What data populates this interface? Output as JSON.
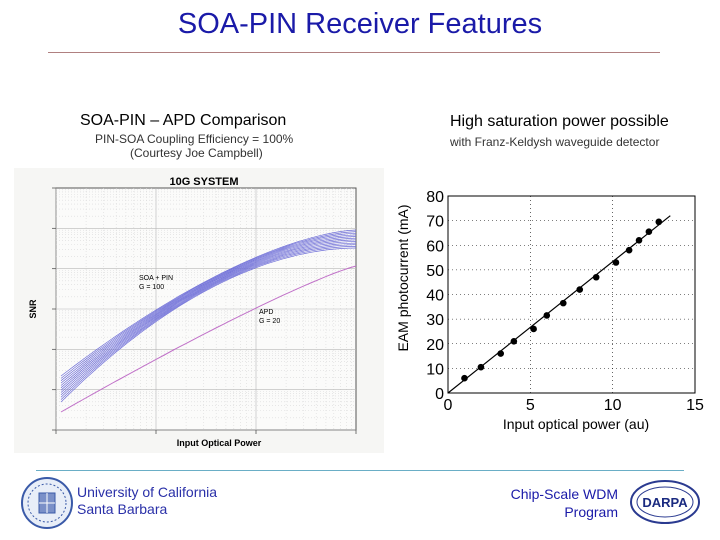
{
  "slide": {
    "title": "SOA-PIN Receiver Features"
  },
  "left_section": {
    "heading": "SOA-PIN – APD Comparison",
    "subtitle_line1": "PIN-SOA Coupling Efficiency = 100%",
    "subtitle_line2": "(Courtesy Joe Campbell)"
  },
  "right_section": {
    "heading": "High saturation power possible",
    "subtitle": "with Franz-Keldysh waveguide detector"
  },
  "footer": {
    "university_line1": "University of California",
    "university_line2": "Santa Barbara",
    "program_line1": "Chip-Scale WDM",
    "program_line2": "Program",
    "darpa_logo_text": "DARPA"
  },
  "chart_data": [
    {
      "type": "line",
      "title": "10G SYSTEM",
      "xlabel": "Input Optical Power",
      "ylabel": "SNR",
      "x_scale": "log",
      "y_scale": "log",
      "grid": true,
      "annotations": [
        {
          "lines": [
            "SOA + PIN",
            "G = 100"
          ]
        },
        {
          "lines": [
            "APD",
            "G = 20"
          ]
        }
      ],
      "series": [
        {
          "name": "SOA + PIN",
          "color": "#6f6fd8",
          "curve_count": 12
        },
        {
          "name": "APD",
          "color": "#c070c8",
          "curve_count": 1
        }
      ]
    },
    {
      "type": "scatter",
      "xlabel": "Input optical power (au)",
      "ylabel": "EAM photocurrent (mA)",
      "xlim": [
        0,
        15
      ],
      "ylim": [
        0,
        80
      ],
      "xticks": [
        "0",
        "5",
        "10",
        "15"
      ],
      "yticks": [
        "0",
        "10",
        "20",
        "30",
        "40",
        "50",
        "60",
        "70",
        "80"
      ],
      "grid": true,
      "fit_line": {
        "from": [
          0,
          0
        ],
        "to": [
          13.5,
          72
        ]
      },
      "x": [
        1,
        2,
        3.2,
        4,
        5.2,
        6,
        7,
        8,
        9,
        10.2,
        11,
        11.6,
        12.2,
        12.8
      ],
      "y": [
        6,
        10.5,
        16,
        21,
        26,
        31.5,
        36.5,
        42,
        47,
        53,
        58,
        62,
        65.5,
        69.5
      ]
    }
  ]
}
